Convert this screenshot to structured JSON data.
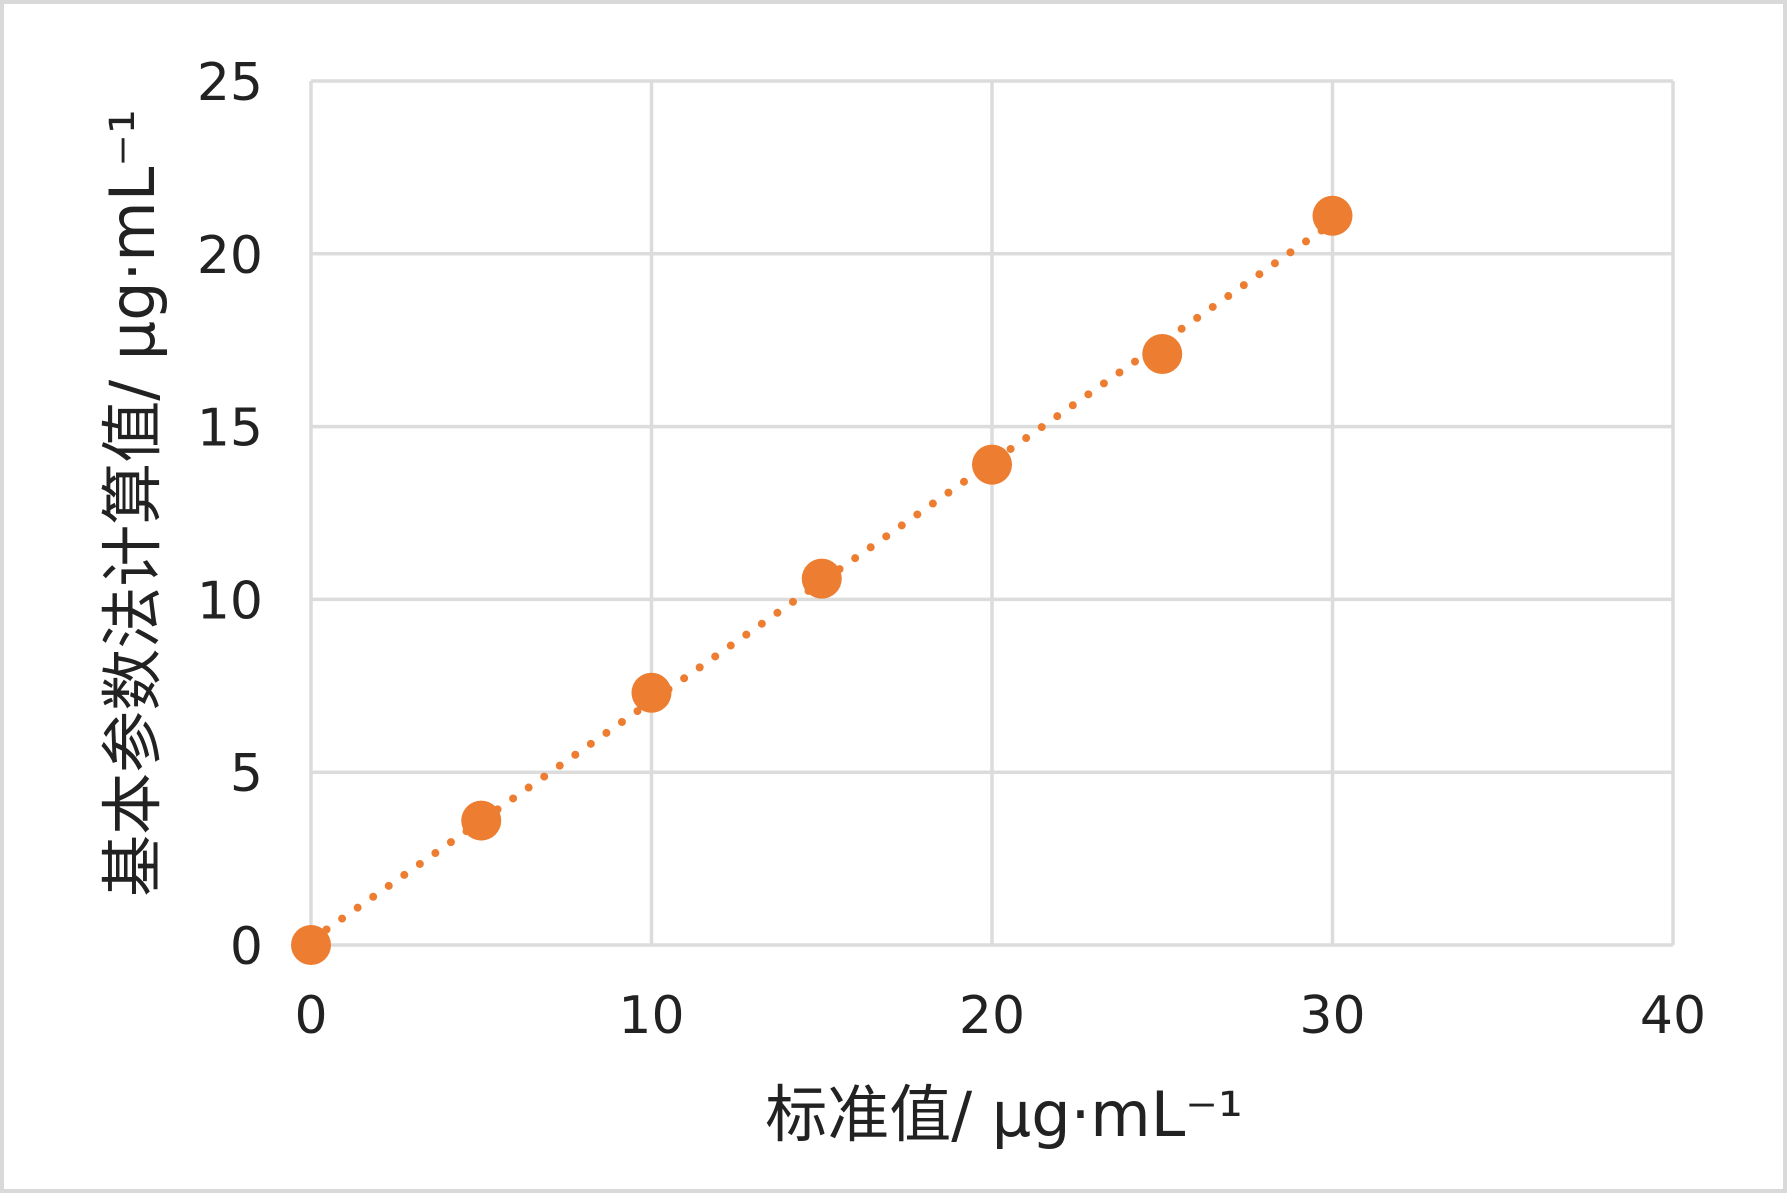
{
  "chart_data": {
    "type": "scatter",
    "xlabel": "标准值/ μg·mL⁻¹",
    "ylabel": "基本参数法计算值/ μg·mL⁻¹",
    "xlim": [
      0,
      40
    ],
    "ylim": [
      0,
      25
    ],
    "xticks": [
      0,
      10,
      20,
      30,
      40
    ],
    "yticks": [
      0,
      5,
      10,
      15,
      20,
      25
    ],
    "grid": true,
    "series": [
      {
        "x": [
          0,
          5,
          10,
          15,
          20,
          25,
          30
        ],
        "y": [
          0,
          3.6,
          7.3,
          10.6,
          13.9,
          17.1,
          21.1
        ],
        "color": "#ed7d31",
        "trendline": "linear, dotted"
      }
    ]
  }
}
